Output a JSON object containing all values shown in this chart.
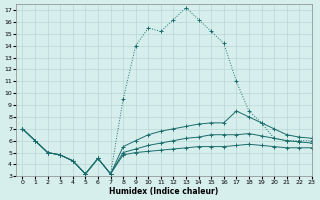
{
  "xlabel": "Humidex (Indice chaleur)",
  "xlim": [
    -0.5,
    23
  ],
  "ylim": [
    3,
    17.5
  ],
  "yticks": [
    3,
    4,
    5,
    6,
    7,
    8,
    9,
    10,
    11,
    12,
    13,
    14,
    15,
    16,
    17
  ],
  "xticks": [
    0,
    1,
    2,
    3,
    4,
    5,
    6,
    7,
    8,
    9,
    10,
    11,
    12,
    13,
    14,
    15,
    16,
    17,
    18,
    19,
    20,
    21,
    22,
    23
  ],
  "bg_color": "#d6efed",
  "line_color": "#1a6b6b",
  "grid_color": "#b8d8d5",
  "line1_dotted": {
    "x": [
      0,
      1,
      2,
      3,
      4,
      5,
      6,
      7,
      8,
      9,
      10,
      11,
      12,
      13,
      14,
      15,
      16,
      17,
      18,
      19,
      20,
      21,
      22,
      23
    ],
    "y": [
      7.0,
      6.0,
      5.0,
      4.8,
      4.3,
      3.2,
      4.5,
      3.2,
      9.5,
      14.0,
      15.5,
      15.2,
      16.2,
      17.2,
      16.2,
      15.2,
      14.2,
      11.0,
      8.5,
      7.5,
      6.2,
      6.0,
      6.0,
      6.0
    ]
  },
  "line2_solid": {
    "x": [
      0,
      1,
      2,
      3,
      4,
      5,
      6,
      7,
      8,
      9,
      10,
      11,
      12,
      13,
      14,
      15,
      16,
      17,
      18,
      19,
      20,
      21,
      22,
      23
    ],
    "y": [
      7.0,
      6.0,
      5.0,
      4.8,
      4.3,
      3.2,
      4.5,
      3.2,
      5.5,
      6.0,
      6.5,
      6.8,
      7.0,
      7.2,
      7.4,
      7.5,
      7.5,
      8.5,
      8.0,
      7.5,
      7.0,
      6.5,
      6.3,
      6.2
    ]
  },
  "line3_solid": {
    "x": [
      0,
      1,
      2,
      3,
      4,
      5,
      6,
      7,
      8,
      9,
      10,
      11,
      12,
      13,
      14,
      15,
      16,
      17,
      18,
      19,
      20,
      21,
      22,
      23
    ],
    "y": [
      7.0,
      6.0,
      5.0,
      4.8,
      4.3,
      3.2,
      4.5,
      3.2,
      5.0,
      5.3,
      5.6,
      5.8,
      6.0,
      6.2,
      6.3,
      6.5,
      6.5,
      6.5,
      6.6,
      6.4,
      6.2,
      6.0,
      5.9,
      5.8
    ]
  },
  "line4_solid": {
    "x": [
      0,
      1,
      2,
      3,
      4,
      5,
      6,
      7,
      8,
      9,
      10,
      11,
      12,
      13,
      14,
      15,
      16,
      17,
      18,
      19,
      20,
      21,
      22,
      23
    ],
    "y": [
      7.0,
      6.0,
      5.0,
      4.8,
      4.3,
      3.2,
      4.5,
      3.2,
      4.8,
      5.0,
      5.1,
      5.2,
      5.3,
      5.4,
      5.5,
      5.5,
      5.5,
      5.6,
      5.7,
      5.6,
      5.5,
      5.4,
      5.4,
      5.4
    ]
  }
}
